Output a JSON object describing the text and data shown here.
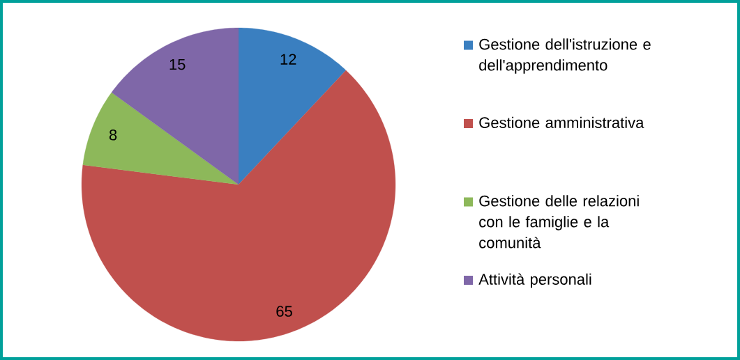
{
  "chart_data": {
    "type": "pie",
    "categories": [
      "Gestione dell'istruzione e dell'apprendimento",
      "Gestione amministrativa",
      "Gestione delle relazioni con le famiglie e la comunità",
      "Attività personali"
    ],
    "values": [
      12,
      65,
      8,
      15
    ],
    "colors": [
      "#3a7fc0",
      "#c0504d",
      "#8db85a",
      "#7f67a8"
    ],
    "data_labels": true,
    "legend": "right"
  }
}
